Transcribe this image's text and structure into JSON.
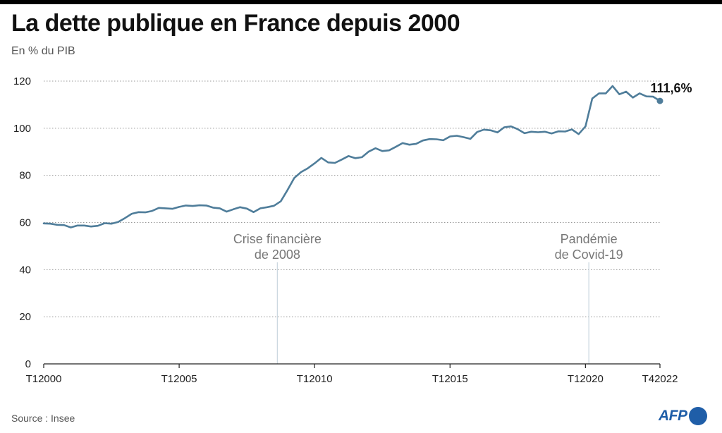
{
  "header": {
    "title": "La dette publique en France depuis 2000",
    "subtitle": "En % du PIB"
  },
  "footer": {
    "source": "Source : Insee",
    "logo": "AFP"
  },
  "colors": {
    "line": "#4f7d9a",
    "grid": "#9a9a9a",
    "annotation_text": "#777777",
    "logo": "#1f5ea8"
  },
  "chart_data": {
    "type": "line",
    "title": "La dette publique en France depuis 2000",
    "subtitle": "En % du PIB",
    "xlabel": "",
    "ylabel": "",
    "ylim": [
      0,
      120
    ],
    "yticks": [
      0,
      20,
      40,
      60,
      80,
      100,
      120
    ],
    "grid": "horizontal dotted",
    "x_tick_labels": [
      {
        "label": "T12000",
        "q": 0
      },
      {
        "label": "T12005",
        "q": 20
      },
      {
        "label": "T12010",
        "q": 40
      },
      {
        "label": "T12015",
        "q": 60
      },
      {
        "label": "T12020",
        "q": 80
      },
      {
        "label": "T42022",
        "q": 91
      }
    ],
    "series": [
      {
        "values": [
          59.6,
          59.5,
          59.0,
          58.9,
          57.9,
          58.7,
          58.7,
          58.3,
          58.6,
          59.7,
          59.5,
          60.2,
          61.9,
          63.7,
          64.4,
          64.3,
          64.9,
          66.2,
          66.0,
          65.8,
          66.6,
          67.2,
          67.0,
          67.3,
          67.2,
          66.3,
          66.0,
          64.6,
          65.6,
          66.5,
          65.9,
          64.4,
          66.0,
          66.5,
          67.1,
          69.0,
          73.8,
          78.9,
          81.4,
          83.0,
          85.1,
          87.4,
          85.5,
          85.3,
          86.7,
          88.2,
          87.3,
          87.7,
          90.1,
          91.5,
          90.3,
          90.6,
          92.1,
          93.7,
          93.0,
          93.4,
          94.8,
          95.4,
          95.3,
          94.9,
          96.5,
          96.8,
          96.2,
          95.5,
          98.4,
          99.4,
          99.1,
          98.2,
          100.4,
          100.8,
          99.6,
          97.9,
          98.5,
          98.3,
          98.5,
          97.8,
          98.7,
          98.6,
          99.5,
          97.5,
          100.8,
          112.6,
          114.8,
          114.8,
          117.9,
          114.4,
          115.5,
          113.0,
          114.8,
          113.5,
          113.4,
          111.6
        ]
      }
    ],
    "end_label": "111,6%",
    "annotations": [
      {
        "text_lines": [
          "Crise financière",
          "de 2008"
        ],
        "q": 34.5
      },
      {
        "text_lines": [
          "Pandémie",
          "de Covid-19"
        ],
        "q": 80.5
      }
    ]
  }
}
